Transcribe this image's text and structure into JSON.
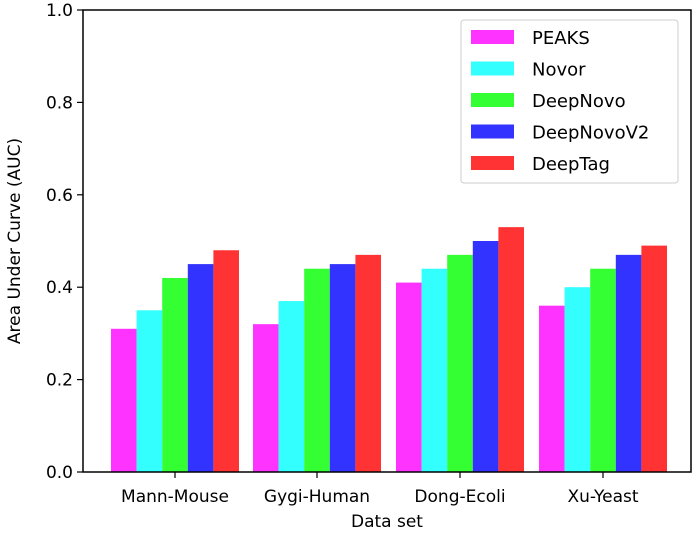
{
  "chart_data": {
    "type": "bar",
    "title": "",
    "xlabel": "Data set",
    "ylabel": "Area Under Curve (AUC)",
    "ylim": [
      0.0,
      1.0
    ],
    "yticks": [
      "0.0",
      "0.2",
      "0.4",
      "0.6",
      "0.8",
      "1.0"
    ],
    "grid": false,
    "legend_position": "upper right",
    "categories": [
      "Mann-Mouse",
      "Gygi-Human",
      "Dong-Ecoli",
      "Xu-Yeast"
    ],
    "series": [
      {
        "name": "PEAKS",
        "color": "#ff33ff",
        "values": [
          0.31,
          0.32,
          0.41,
          0.36
        ]
      },
      {
        "name": "Novor",
        "color": "#33ffff",
        "values": [
          0.35,
          0.37,
          0.44,
          0.4
        ]
      },
      {
        "name": "DeepNovo",
        "color": "#33ff33",
        "values": [
          0.42,
          0.44,
          0.47,
          0.44
        ]
      },
      {
        "name": "DeepNovoV2",
        "color": "#3333ff",
        "values": [
          0.45,
          0.45,
          0.5,
          0.47
        ]
      },
      {
        "name": "DeepTag",
        "color": "#ff3333",
        "values": [
          0.48,
          0.47,
          0.53,
          0.49
        ]
      }
    ]
  }
}
